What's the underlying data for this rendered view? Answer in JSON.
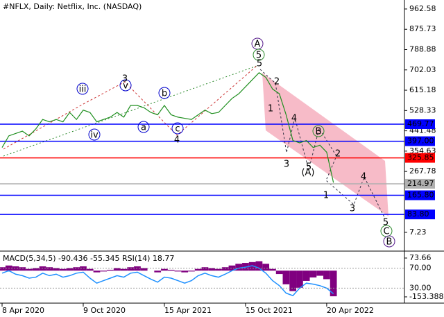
{
  "chart_data": {
    "type": "line",
    "title": "#NFLX, Daily:  Netflix, Inc. (NASDAQ)",
    "values": [
      370,
      420,
      430,
      440,
      420,
      450,
      490,
      480,
      490,
      480,
      520,
      490,
      530,
      520,
      480,
      490,
      500,
      520,
      500,
      550,
      550,
      540,
      520,
      510,
      550,
      510,
      500,
      495,
      490,
      510,
      530,
      515,
      520,
      550,
      580,
      600,
      630,
      660,
      690,
      670,
      620,
      600,
      510,
      400,
      390,
      400,
      370,
      380,
      350,
      220
    ],
    "color": "#1f8f1f",
    "xlim": [
      0,
      59.5
    ],
    "xticks": [
      {
        "value": 0,
        "label": "8 Apr 2020"
      },
      {
        "value": 12,
        "label": "9 Oct 2020"
      },
      {
        "value": 24,
        "label": "15 Apr 2021"
      },
      {
        "value": 36,
        "label": "15 Oct 2021"
      },
      {
        "value": 48,
        "label": "20 Apr 2022"
      }
    ],
    "ylim": [
      -73,
      1001
    ],
    "yticks": [
      962.58,
      875.73,
      788.88,
      702.03,
      615.18,
      528.33,
      441.48,
      354.63,
      267.78,
      7.23
    ],
    "levels": [
      {
        "value": 469.77,
        "color": "#0000ff"
      },
      {
        "value": 397,
        "label": "397.00",
        "color": "#0000ff"
      },
      {
        "value": 325.85,
        "color": "#ff0000"
      },
      {
        "value": 214.97,
        "color": "#b0b0b0"
      },
      {
        "value": 165.8,
        "label": "165.80",
        "color": "#0000ff"
      },
      {
        "value": 83.8,
        "label": "83.80",
        "color": "#0000ff"
      }
    ],
    "annotations": [
      {
        "text": "A",
        "color": "#551a8b",
        "circled": true
      },
      {
        "text": "5",
        "color": "#2e8b2e",
        "circled": true
      },
      {
        "text": "5",
        "color": "#a0522d"
      },
      {
        "text": "2",
        "color": "#a0522d"
      },
      {
        "text": "1",
        "color": "#a0522d"
      },
      {
        "text": "4",
        "color": "#a0522d"
      },
      {
        "text": "B",
        "color": "#2e8b2e",
        "circled": true
      },
      {
        "text": "3",
        "color": "#a0522d"
      },
      {
        "text": "5",
        "color": "#a0522d"
      },
      {
        "text": "(A)",
        "color": "#2e8b2e"
      },
      {
        "text": "2",
        "color": "#a0522d"
      },
      {
        "text": "1",
        "color": "#dd0000"
      },
      {
        "text": "3",
        "color": "#a0522d"
      },
      {
        "text": "4",
        "color": "#a0522d"
      },
      {
        "text": "5",
        "color": "#a0522d"
      },
      {
        "text": "C",
        "color": "#2e8b2e",
        "circled": true
      },
      {
        "text": "B",
        "color": "#551a8b",
        "circled": true
      },
      {
        "text": "iii",
        "color": "#0000cd",
        "circled": true
      },
      {
        "text": "v",
        "color": "#0000cd",
        "circled": true
      },
      {
        "text": "b",
        "color": "#0000cd",
        "circled": true
      },
      {
        "text": "iv",
        "color": "#0000cd",
        "circled": true
      },
      {
        "text": "a",
        "color": "#0000cd",
        "circled": true
      },
      {
        "text": "c",
        "color": "#0000cd",
        "circled": true
      },
      {
        "text": "3",
        "color": "#a0522d"
      },
      {
        "text": "4",
        "color": "#a0522d"
      }
    ],
    "indicator": {
      "label": "MACD(5,34,5) -90.436 -55.345 RSI(14) 18.77",
      "macd": [
        20,
        30,
        25,
        20,
        10,
        15,
        25,
        20,
        15,
        10,
        15,
        20,
        25,
        10,
        -10,
        -5,
        5,
        15,
        10,
        20,
        25,
        15,
        0,
        -10,
        10,
        5,
        -5,
        -10,
        -5,
        10,
        20,
        15,
        10,
        20,
        30,
        40,
        45,
        50,
        55,
        40,
        10,
        -20,
        -80,
        -120,
        -100,
        -60,
        -40,
        -30,
        -50,
        -150
      ],
      "macd_color": "#800080",
      "macd_lim": [
        -190,
        102
      ],
      "macd_ticks": [
        73.66,
        -153.388
      ],
      "rsi": [
        60,
        65,
        58,
        55,
        50,
        52,
        60,
        55,
        58,
        52,
        55,
        60,
        62,
        50,
        40,
        45,
        50,
        55,
        52,
        60,
        62,
        55,
        48,
        42,
        52,
        50,
        45,
        40,
        45,
        55,
        60,
        55,
        52,
        58,
        65,
        70,
        72,
        75,
        70,
        60,
        45,
        35,
        20,
        15,
        30,
        40,
        38,
        35,
        30,
        18.77
      ],
      "rsi_color": "#1e90ff",
      "rsi_lim": [
        0,
        100
      ],
      "rsi_ticks": [
        {
          "value": 70,
          "label": "70.00"
        },
        {
          "value": 30,
          "label": "30.00"
        }
      ]
    }
  }
}
